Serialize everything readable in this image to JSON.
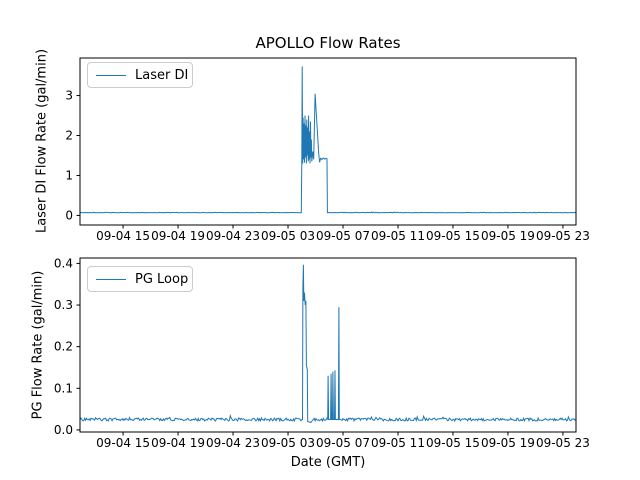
{
  "figure": {
    "title": "APOLLO Flow Rates",
    "line_color": "#1f77b4",
    "background": "#ffffff"
  },
  "x_axis": {
    "label": "Date (GMT)",
    "tick_labels": [
      "09-04 15",
      "09-04 19",
      "09-04 23",
      "09-05 03",
      "09-05 07",
      "09-05 11",
      "09-05 15",
      "09-05 19",
      "09-05 23"
    ],
    "xlim": [
      "09-04 11:52",
      "09-05 23:57"
    ]
  },
  "chart_data": [
    {
      "type": "line",
      "title": "APOLLO Flow Rates",
      "series_name": "Laser DI",
      "ylabel": "Laser DI Flow Rate (gal/min)",
      "ytick_labels": [
        "0",
        "1",
        "2",
        "3"
      ],
      "ylim": [
        -0.24,
        3.94
      ],
      "legend_position": "upper left",
      "grid": false,
      "baseline_value": 0.07,
      "baseline_noise": 0.005,
      "points": [
        [
          "09-04 11:52",
          0.07
        ],
        [
          "09-05 03:58",
          0.07
        ],
        [
          "09-05 04:00",
          1.35
        ],
        [
          "09-05 04:02",
          3.73
        ],
        [
          "09-05 04:04",
          1.3
        ],
        [
          "09-05 04:06",
          2.45
        ],
        [
          "09-05 04:08",
          1.4
        ],
        [
          "09-05 04:10",
          2.3
        ],
        [
          "09-05 04:12",
          1.32
        ],
        [
          "09-05 04:14",
          2.5
        ],
        [
          "09-05 04:16",
          1.45
        ],
        [
          "09-05 04:18",
          2.25
        ],
        [
          "09-05 04:20",
          1.3
        ],
        [
          "09-05 04:22",
          2.4
        ],
        [
          "09-05 04:24",
          1.5
        ],
        [
          "09-05 04:26",
          2.2
        ],
        [
          "09-05 04:28",
          1.35
        ],
        [
          "09-05 04:30",
          2.5
        ],
        [
          "09-05 04:32",
          1.4
        ],
        [
          "09-05 04:34",
          2.1
        ],
        [
          "09-05 04:36",
          1.3
        ],
        [
          "09-05 04:38",
          2.35
        ],
        [
          "09-05 04:40",
          1.45
        ],
        [
          "09-05 04:42",
          1.9
        ],
        [
          "09-05 04:44",
          1.35
        ],
        [
          "09-05 04:48",
          1.6
        ],
        [
          "09-05 04:52",
          1.4
        ],
        [
          "09-05 04:58",
          3.05
        ],
        [
          "09-05 05:06",
          2.3
        ],
        [
          "09-05 05:14",
          1.55
        ],
        [
          "09-05 05:18",
          1.33
        ],
        [
          "09-05 05:22",
          1.43
        ],
        [
          "09-05 05:28",
          1.4
        ],
        [
          "09-05 05:34",
          1.44
        ],
        [
          "09-05 05:40",
          1.41
        ],
        [
          "09-05 05:46",
          1.43
        ],
        [
          "09-05 05:50",
          1.42
        ],
        [
          "09-05 05:52",
          0.07
        ],
        [
          "09-05 23:57",
          0.07
        ]
      ]
    },
    {
      "type": "line",
      "series_name": "PG Loop",
      "ylabel": "PG Flow Rate (gal/min)",
      "ytick_labels": [
        "0.0",
        "0.1",
        "0.2",
        "0.3",
        "0.4"
      ],
      "ylim": [
        -0.005,
        0.413
      ],
      "legend_position": "upper left",
      "grid": false,
      "baseline_value": 0.025,
      "baseline_noise": 0.0035,
      "points": [
        [
          "09-04 11:52",
          0.025
        ],
        [
          "09-05 04:03",
          0.025
        ],
        [
          "09-05 04:05",
          0.345
        ],
        [
          "09-05 04:07",
          0.397
        ],
        [
          "09-05 04:09",
          0.31
        ],
        [
          "09-05 04:12",
          0.33
        ],
        [
          "09-05 04:15",
          0.3
        ],
        [
          "09-05 04:18",
          0.31
        ],
        [
          "09-05 04:20",
          0.155
        ],
        [
          "09-05 04:24",
          0.145
        ],
        [
          "09-05 04:26",
          0.02
        ],
        [
          "09-05 04:40",
          0.018
        ],
        [
          "09-05 04:50",
          0.025
        ],
        [
          "09-05 05:53",
          0.025
        ],
        [
          "09-05 05:55",
          0.13
        ],
        [
          "09-05 05:57",
          0.025
        ],
        [
          "09-05 06:06",
          0.025
        ],
        [
          "09-05 06:08",
          0.135
        ],
        [
          "09-05 06:10",
          0.025
        ],
        [
          "09-05 06:14",
          0.025
        ],
        [
          "09-05 06:16",
          0.14
        ],
        [
          "09-05 06:18",
          0.025
        ],
        [
          "09-05 06:23",
          0.025
        ],
        [
          "09-05 06:25",
          0.143
        ],
        [
          "09-05 06:27",
          0.025
        ],
        [
          "09-05 06:40",
          0.025
        ],
        [
          "09-05 06:42",
          0.295
        ],
        [
          "09-05 06:44",
          0.025
        ],
        [
          "09-05 23:57",
          0.025
        ]
      ]
    }
  ]
}
